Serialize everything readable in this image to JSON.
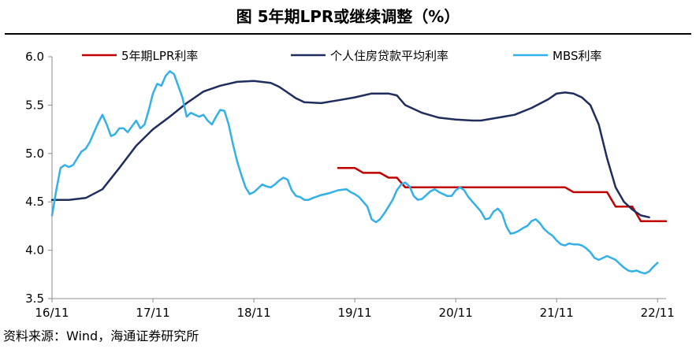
{
  "title": "图  5年期LPR或继续调整（%）",
  "source": "资料来源：Wind，海通证券研究所",
  "chart_data": {
    "type": "line",
    "title": "图  5年期LPR或继续调整（%）",
    "xlabel": "",
    "ylabel": "",
    "xlim": [
      2016.833,
      2022.917
    ],
    "ylim": [
      3.5,
      6.0
    ],
    "xticks": [
      {
        "label": "16/11",
        "x": 2016.833
      },
      {
        "label": "17/11",
        "x": 2017.833
      },
      {
        "label": "18/11",
        "x": 2018.833
      },
      {
        "label": "19/11",
        "x": 2019.833
      },
      {
        "label": "20/11",
        "x": 2020.833
      },
      {
        "label": "21/11",
        "x": 2021.833
      },
      {
        "label": "22/11",
        "x": 2022.833
      }
    ],
    "yticks": [
      {
        "label": "3.5",
        "y": 3.5
      },
      {
        "label": "4.0",
        "y": 4.0
      },
      {
        "label": "4.5",
        "y": 4.5
      },
      {
        "label": "5.0",
        "y": 5.0
      },
      {
        "label": "5.5",
        "y": 5.5
      },
      {
        "label": "6.0",
        "y": 6.0
      }
    ],
    "grid": false,
    "legend": "top",
    "series": [
      {
        "name": "5年期LPR利率",
        "color": "#C00000",
        "points": [
          [
            2019.667,
            4.85
          ],
          [
            2019.833,
            4.85
          ],
          [
            2019.917,
            4.8
          ],
          [
            2020.0,
            4.8
          ],
          [
            2020.083,
            4.8
          ],
          [
            2020.167,
            4.75
          ],
          [
            2020.25,
            4.75
          ],
          [
            2020.333,
            4.65
          ],
          [
            2020.5,
            4.65
          ],
          [
            2020.833,
            4.65
          ],
          [
            2021.0,
            4.65
          ],
          [
            2021.25,
            4.65
          ],
          [
            2021.5,
            4.65
          ],
          [
            2021.833,
            4.65
          ],
          [
            2021.917,
            4.65
          ],
          [
            2022.0,
            4.6
          ],
          [
            2022.083,
            4.6
          ],
          [
            2022.25,
            4.6
          ],
          [
            2022.333,
            4.6
          ],
          [
            2022.417,
            4.45
          ],
          [
            2022.5,
            4.45
          ],
          [
            2022.583,
            4.45
          ],
          [
            2022.667,
            4.3
          ],
          [
            2022.75,
            4.3
          ],
          [
            2022.833,
            4.3
          ],
          [
            2022.917,
            4.3
          ]
        ]
      },
      {
        "name": "个人住房贷款平均利率",
        "color": "#1F2D5C",
        "points": [
          [
            2016.833,
            4.52
          ],
          [
            2017.0,
            4.52
          ],
          [
            2017.167,
            4.54
          ],
          [
            2017.333,
            4.63
          ],
          [
            2017.5,
            4.85
          ],
          [
            2017.667,
            5.08
          ],
          [
            2017.833,
            5.25
          ],
          [
            2018.0,
            5.38
          ],
          [
            2018.167,
            5.52
          ],
          [
            2018.333,
            5.64
          ],
          [
            2018.5,
            5.7
          ],
          [
            2018.667,
            5.74
          ],
          [
            2018.833,
            5.75
          ],
          [
            2019.0,
            5.73
          ],
          [
            2019.083,
            5.69
          ],
          [
            2019.167,
            5.63
          ],
          [
            2019.25,
            5.57
          ],
          [
            2019.333,
            5.53
          ],
          [
            2019.5,
            5.52
          ],
          [
            2019.667,
            5.55
          ],
          [
            2019.833,
            5.58
          ],
          [
            2020.0,
            5.62
          ],
          [
            2020.167,
            5.62
          ],
          [
            2020.25,
            5.6
          ],
          [
            2020.333,
            5.5
          ],
          [
            2020.5,
            5.42
          ],
          [
            2020.667,
            5.37
          ],
          [
            2020.833,
            5.35
          ],
          [
            2021.0,
            5.34
          ],
          [
            2021.083,
            5.34
          ],
          [
            2021.25,
            5.37
          ],
          [
            2021.417,
            5.4
          ],
          [
            2021.583,
            5.47
          ],
          [
            2021.75,
            5.56
          ],
          [
            2021.833,
            5.62
          ],
          [
            2021.917,
            5.63
          ],
          [
            2022.0,
            5.62
          ],
          [
            2022.083,
            5.58
          ],
          [
            2022.167,
            5.5
          ],
          [
            2022.25,
            5.3
          ],
          [
            2022.333,
            4.95
          ],
          [
            2022.417,
            4.65
          ],
          [
            2022.5,
            4.5
          ],
          [
            2022.583,
            4.42
          ],
          [
            2022.667,
            4.36
          ],
          [
            2022.75,
            4.34
          ]
        ]
      },
      {
        "name": "MBS利率",
        "color": "#33B0E8",
        "points": [
          [
            2016.833,
            4.36
          ],
          [
            2016.875,
            4.62
          ],
          [
            2016.917,
            4.85
          ],
          [
            2016.958,
            4.88
          ],
          [
            2017.0,
            4.86
          ],
          [
            2017.042,
            4.88
          ],
          [
            2017.083,
            4.95
          ],
          [
            2017.125,
            5.02
          ],
          [
            2017.167,
            5.05
          ],
          [
            2017.208,
            5.12
          ],
          [
            2017.25,
            5.22
          ],
          [
            2017.292,
            5.32
          ],
          [
            2017.333,
            5.4
          ],
          [
            2017.375,
            5.3
          ],
          [
            2017.417,
            5.18
          ],
          [
            2017.458,
            5.2
          ],
          [
            2017.5,
            5.26
          ],
          [
            2017.542,
            5.26
          ],
          [
            2017.583,
            5.22
          ],
          [
            2017.625,
            5.28
          ],
          [
            2017.667,
            5.34
          ],
          [
            2017.708,
            5.26
          ],
          [
            2017.75,
            5.3
          ],
          [
            2017.792,
            5.45
          ],
          [
            2017.833,
            5.62
          ],
          [
            2017.875,
            5.72
          ],
          [
            2017.917,
            5.7
          ],
          [
            2017.958,
            5.8
          ],
          [
            2018.0,
            5.85
          ],
          [
            2018.042,
            5.82
          ],
          [
            2018.083,
            5.7
          ],
          [
            2018.125,
            5.58
          ],
          [
            2018.167,
            5.38
          ],
          [
            2018.208,
            5.42
          ],
          [
            2018.25,
            5.4
          ],
          [
            2018.292,
            5.38
          ],
          [
            2018.333,
            5.4
          ],
          [
            2018.375,
            5.34
          ],
          [
            2018.417,
            5.3
          ],
          [
            2018.458,
            5.38
          ],
          [
            2018.5,
            5.45
          ],
          [
            2018.542,
            5.44
          ],
          [
            2018.583,
            5.3
          ],
          [
            2018.625,
            5.1
          ],
          [
            2018.667,
            4.92
          ],
          [
            2018.708,
            4.78
          ],
          [
            2018.75,
            4.65
          ],
          [
            2018.792,
            4.58
          ],
          [
            2018.833,
            4.6
          ],
          [
            2018.875,
            4.64
          ],
          [
            2018.917,
            4.68
          ],
          [
            2018.958,
            4.66
          ],
          [
            2019.0,
            4.65
          ],
          [
            2019.042,
            4.68
          ],
          [
            2019.083,
            4.72
          ],
          [
            2019.125,
            4.75
          ],
          [
            2019.167,
            4.73
          ],
          [
            2019.208,
            4.62
          ],
          [
            2019.25,
            4.56
          ],
          [
            2019.292,
            4.55
          ],
          [
            2019.333,
            4.52
          ],
          [
            2019.375,
            4.52
          ],
          [
            2019.417,
            4.54
          ],
          [
            2019.5,
            4.57
          ],
          [
            2019.583,
            4.59
          ],
          [
            2019.667,
            4.62
          ],
          [
            2019.75,
            4.63
          ],
          [
            2019.792,
            4.6
          ],
          [
            2019.833,
            4.58
          ],
          [
            2019.875,
            4.55
          ],
          [
            2019.917,
            4.5
          ],
          [
            2019.958,
            4.45
          ],
          [
            2020.0,
            4.32
          ],
          [
            2020.042,
            4.29
          ],
          [
            2020.083,
            4.32
          ],
          [
            2020.125,
            4.38
          ],
          [
            2020.167,
            4.45
          ],
          [
            2020.208,
            4.52
          ],
          [
            2020.25,
            4.62
          ],
          [
            2020.292,
            4.68
          ],
          [
            2020.333,
            4.7
          ],
          [
            2020.375,
            4.66
          ],
          [
            2020.417,
            4.56
          ],
          [
            2020.458,
            4.52
          ],
          [
            2020.5,
            4.53
          ],
          [
            2020.542,
            4.57
          ],
          [
            2020.583,
            4.61
          ],
          [
            2020.625,
            4.63
          ],
          [
            2020.667,
            4.6
          ],
          [
            2020.708,
            4.58
          ],
          [
            2020.75,
            4.56
          ],
          [
            2020.792,
            4.56
          ],
          [
            2020.833,
            4.62
          ],
          [
            2020.875,
            4.65
          ],
          [
            2020.917,
            4.62
          ],
          [
            2020.958,
            4.55
          ],
          [
            2021.0,
            4.5
          ],
          [
            2021.042,
            4.45
          ],
          [
            2021.083,
            4.4
          ],
          [
            2021.125,
            4.32
          ],
          [
            2021.167,
            4.33
          ],
          [
            2021.208,
            4.4
          ],
          [
            2021.25,
            4.43
          ],
          [
            2021.292,
            4.38
          ],
          [
            2021.333,
            4.25
          ],
          [
            2021.375,
            4.17
          ],
          [
            2021.417,
            4.18
          ],
          [
            2021.458,
            4.2
          ],
          [
            2021.5,
            4.23
          ],
          [
            2021.542,
            4.25
          ],
          [
            2021.583,
            4.3
          ],
          [
            2021.625,
            4.32
          ],
          [
            2021.667,
            4.28
          ],
          [
            2021.708,
            4.22
          ],
          [
            2021.75,
            4.18
          ],
          [
            2021.792,
            4.15
          ],
          [
            2021.833,
            4.1
          ],
          [
            2021.875,
            4.06
          ],
          [
            2021.917,
            4.05
          ],
          [
            2021.958,
            4.07
          ],
          [
            2022.0,
            4.06
          ],
          [
            2022.042,
            4.06
          ],
          [
            2022.083,
            4.05
          ],
          [
            2022.125,
            4.02
          ],
          [
            2022.167,
            3.98
          ],
          [
            2022.208,
            3.92
          ],
          [
            2022.25,
            3.9
          ],
          [
            2022.292,
            3.92
          ],
          [
            2022.333,
            3.94
          ],
          [
            2022.375,
            3.92
          ],
          [
            2022.417,
            3.9
          ],
          [
            2022.458,
            3.86
          ],
          [
            2022.5,
            3.82
          ],
          [
            2022.542,
            3.79
          ],
          [
            2022.583,
            3.78
          ],
          [
            2022.625,
            3.79
          ],
          [
            2022.667,
            3.77
          ],
          [
            2022.708,
            3.76
          ],
          [
            2022.75,
            3.78
          ],
          [
            2022.792,
            3.83
          ],
          [
            2022.833,
            3.87
          ]
        ]
      }
    ]
  }
}
